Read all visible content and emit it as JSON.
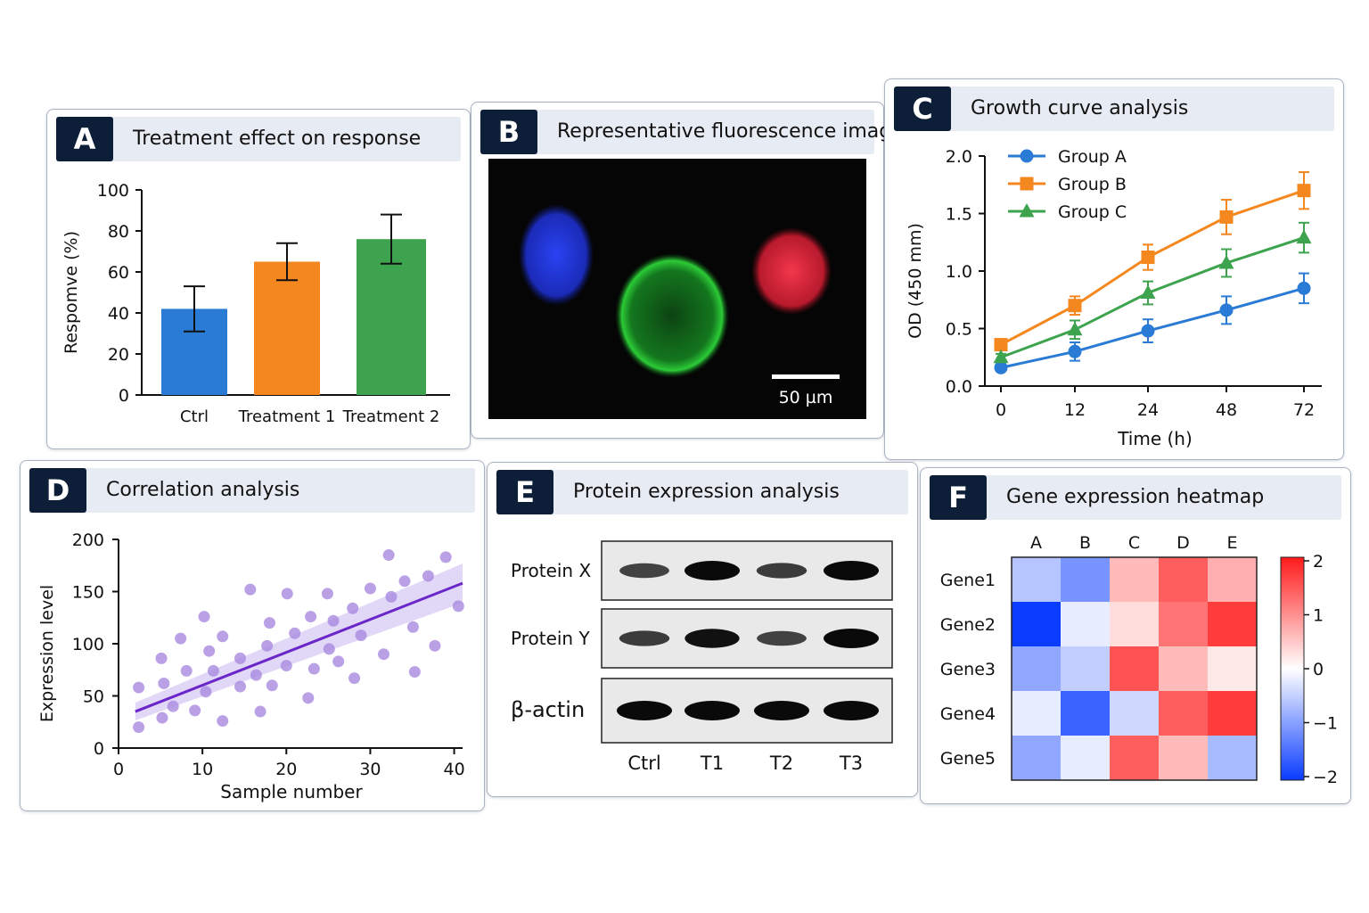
{
  "panels": {
    "A": {
      "letter": "A",
      "title": "Treatment effect on response"
    },
    "B": {
      "letter": "B",
      "title": "Representative fluorescence image",
      "scale_bar_label": "50 µm"
    },
    "C": {
      "letter": "C",
      "title": "Growth curve analysis"
    },
    "D": {
      "letter": "D",
      "title": "Correlation analysis"
    },
    "E": {
      "letter": "E",
      "title": "Protein expression analysis"
    },
    "F": {
      "letter": "F",
      "title": "Gene expression heatmap"
    }
  },
  "colors": {
    "blue": "#2a7bd6",
    "orange": "#f5871f",
    "green": "#3ea34e",
    "purple": "#6a26c8",
    "purple_point": "#a98ae0",
    "badge": "#0d1f38",
    "header": "#e7ebf3"
  },
  "chart_data": [
    {
      "panel": "A",
      "type": "bar",
      "categories": [
        "Ctrl",
        "Treatment 1",
        "Treatment 2"
      ],
      "values": [
        42,
        65,
        76
      ],
      "errors": [
        11,
        9,
        12
      ],
      "colors": [
        "#2a7bd6",
        "#f5871f",
        "#3ea34e"
      ],
      "xlabel": "",
      "ylabel": "Respomve (%)",
      "ylim": [
        0,
        100
      ],
      "yticks": [
        0,
        20,
        40,
        60,
        80,
        100
      ],
      "grid": false
    },
    {
      "panel": "C",
      "type": "line",
      "x": [
        0,
        12,
        24,
        48,
        72
      ],
      "xticks": [
        "0",
        "12",
        "24",
        "48",
        "72"
      ],
      "series": [
        {
          "name": "Group A",
          "values": [
            0.16,
            0.3,
            0.48,
            0.66,
            0.85
          ],
          "errors": [
            0.02,
            0.08,
            0.1,
            0.12,
            0.13
          ],
          "color": "#2a7bd6",
          "marker": "circle"
        },
        {
          "name": "Group B",
          "values": [
            0.36,
            0.7,
            1.12,
            1.47,
            1.7
          ],
          "errors": [
            0.03,
            0.08,
            0.11,
            0.15,
            0.16
          ],
          "color": "#f5871f",
          "marker": "square"
        },
        {
          "name": "Group C",
          "values": [
            0.25,
            0.49,
            0.81,
            1.07,
            1.29
          ],
          "errors": [
            0.03,
            0.08,
            0.1,
            0.12,
            0.13
          ],
          "color": "#3ea34e",
          "marker": "triangle"
        }
      ],
      "xlabel": "Time (h)",
      "ylabel": "OD (450 mm)",
      "ylim": [
        0,
        2.0
      ],
      "yticks": [
        "0.0",
        "0.5",
        "1.0",
        "1.5",
        "2.0"
      ],
      "legend": "top-left",
      "grid": false
    },
    {
      "panel": "D",
      "type": "scatter",
      "points": [
        [
          2.4,
          20
        ],
        [
          2.4,
          58
        ],
        [
          5.1,
          86
        ],
        [
          5.4,
          62
        ],
        [
          5.2,
          29
        ],
        [
          6.5,
          40
        ],
        [
          7.4,
          105
        ],
        [
          8.1,
          74
        ],
        [
          9.1,
          36
        ],
        [
          10.2,
          126
        ],
        [
          10.4,
          54
        ],
        [
          10.8,
          93
        ],
        [
          11.3,
          74
        ],
        [
          12.4,
          107
        ],
        [
          12.4,
          26
        ],
        [
          14.5,
          86
        ],
        [
          14.5,
          59
        ],
        [
          15.7,
          152
        ],
        [
          16.4,
          70
        ],
        [
          16.9,
          35
        ],
        [
          17.7,
          98
        ],
        [
          18.0,
          120
        ],
        [
          18.3,
          60
        ],
        [
          20.0,
          79
        ],
        [
          20.1,
          148
        ],
        [
          21.0,
          110
        ],
        [
          22.6,
          48
        ],
        [
          22.9,
          126
        ],
        [
          23.3,
          76
        ],
        [
          24.9,
          148
        ],
        [
          25.1,
          95
        ],
        [
          25.6,
          122
        ],
        [
          26.2,
          83
        ],
        [
          27.9,
          134
        ],
        [
          28.1,
          67
        ],
        [
          28.9,
          108
        ],
        [
          30.0,
          153
        ],
        [
          31.6,
          90
        ],
        [
          32.2,
          185
        ],
        [
          32.5,
          145
        ],
        [
          34.1,
          160
        ],
        [
          35.1,
          116
        ],
        [
          35.3,
          73
        ],
        [
          36.9,
          165
        ],
        [
          37.7,
          98
        ],
        [
          39.0,
          183
        ],
        [
          40.5,
          136
        ]
      ],
      "fit": {
        "x": [
          2,
          41
        ],
        "y": [
          35,
          158
        ]
      },
      "xlabel": "Sample number",
      "ylabel": "Expression level",
      "xlim": [
        0,
        41
      ],
      "ylim": [
        0,
        200
      ],
      "xticks": [
        0,
        10,
        20,
        30,
        40
      ],
      "yticks": [
        0,
        50,
        100,
        150,
        200
      ],
      "grid": false
    },
    {
      "panel": "F",
      "type": "heatmap",
      "columns": [
        "A",
        "B",
        "C",
        "D",
        "E"
      ],
      "rows": [
        "Gene1",
        "Gene2",
        "Gene3",
        "Gene4",
        "Gene5"
      ],
      "values": [
        [
          -0.6,
          -1.1,
          0.6,
          1.4,
          0.7
        ],
        [
          -2.0,
          -0.2,
          0.3,
          1.2,
          1.7
        ],
        [
          -0.9,
          -0.5,
          1.5,
          0.6,
          0.2
        ],
        [
          -0.2,
          -1.6,
          -0.4,
          1.4,
          1.7
        ],
        [
          -0.9,
          -0.2,
          1.4,
          0.6,
          -0.7
        ]
      ],
      "colorbar_ticks": [
        "2",
        "1",
        "0",
        "−1",
        "−2"
      ],
      "vmin": -2,
      "vmax": 2
    }
  ],
  "western_blot": {
    "rows": [
      {
        "label": "Protein X",
        "intensities": [
          0.55,
          1.0,
          0.6,
          1.0
        ]
      },
      {
        "label": "Protein Y",
        "intensities": [
          0.6,
          0.95,
          0.55,
          1.0
        ]
      },
      {
        "label": "β-actin",
        "intensities": [
          1.0,
          1.0,
          1.0,
          1.0
        ]
      }
    ],
    "lanes": [
      "Ctrl",
      "T1",
      "T2",
      "T3"
    ]
  }
}
